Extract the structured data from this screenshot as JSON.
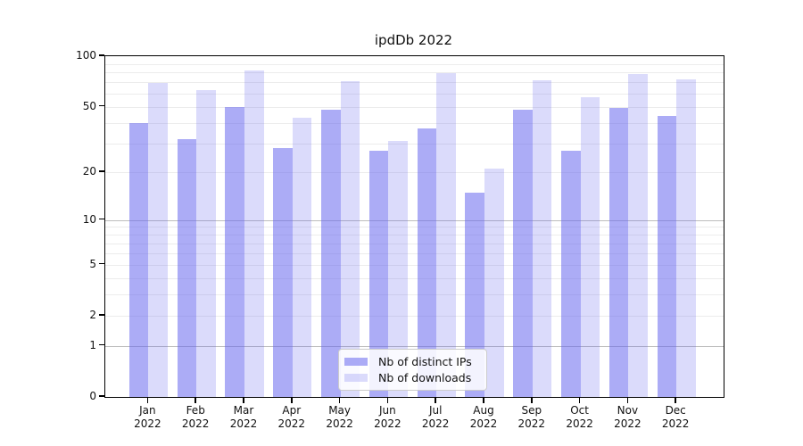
{
  "title": "ipdDb 2022",
  "chart_data": {
    "type": "bar",
    "title": "ipdDb 2022",
    "categories": [
      "Jan",
      "Feb",
      "Mar",
      "Apr",
      "May",
      "Jun",
      "Jul",
      "Aug",
      "Sep",
      "Oct",
      "Nov",
      "Dec"
    ],
    "year": "2022",
    "series": [
      {
        "name": "Nb of distinct IPs",
        "color": "rgba(103,103,238,0.55)",
        "values": [
          40,
          32,
          50,
          28,
          48,
          27,
          37,
          15,
          48,
          27,
          49,
          44
        ]
      },
      {
        "name": "Nb of downloads",
        "color": "rgba(103,103,238,0.235)",
        "values": [
          69,
          63,
          82,
          43,
          71,
          31,
          79,
          21,
          72,
          57,
          78,
          73
        ]
      }
    ],
    "y_axis": {
      "scale": "log1p",
      "ylim": [
        0,
        100
      ],
      "ticks": [
        0,
        1,
        2,
        5,
        10,
        20,
        50,
        100
      ],
      "gridlines": {
        "major": [
          1,
          10
        ],
        "minor": [
          2,
          3,
          4,
          5,
          6,
          7,
          8,
          9,
          20,
          30,
          40,
          50,
          60,
          70,
          80,
          90
        ]
      }
    },
    "legend": {
      "position": "lower center",
      "entries": [
        "Nb of distinct IPs",
        "Nb of downloads"
      ]
    },
    "colors": {
      "bar_ips_on_white": "#abaaf5",
      "bar_downloads_on_white": "#dbdbfa",
      "grid_minor": "#ececec",
      "grid_major": "#bdbdbd",
      "axis": "#000000",
      "text": "#111111"
    }
  }
}
